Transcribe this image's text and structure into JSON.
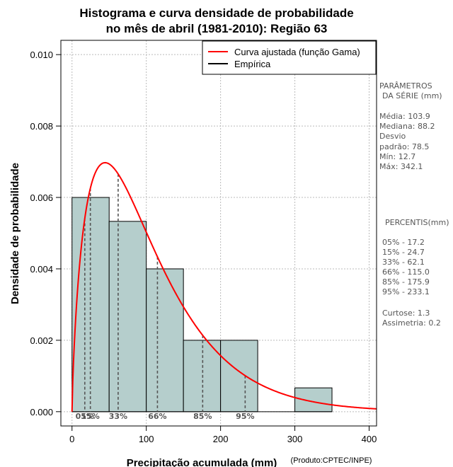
{
  "chart_data": {
    "type": "bar",
    "title_line1": "Histograma e curva densidade de probabilidade",
    "title_line2": "no mês de abril (1981-2010): Região 63",
    "xlabel": "Precipitação acumulada (mm)",
    "ylabel": "Densidade de probabilidade",
    "credit": "(Produto:CPTEC/INPE)",
    "xlim": [
      -15,
      410
    ],
    "ylim": [
      -0.0004,
      0.0104
    ],
    "x_ticks": [
      0,
      100,
      200,
      300,
      400
    ],
    "y_ticks": [
      0.0,
      0.002,
      0.004,
      0.006,
      0.008,
      0.01
    ],
    "y_tick_labels": [
      "0.000",
      "0.002",
      "0.004",
      "0.006",
      "0.008",
      "0.010"
    ],
    "grid": true,
    "bins": [
      {
        "x0": 0,
        "x1": 50,
        "density": 0.006
      },
      {
        "x0": 50,
        "x1": 100,
        "density": 0.00533
      },
      {
        "x0": 100,
        "x1": 150,
        "density": 0.004
      },
      {
        "x0": 150,
        "x1": 200,
        "density": 0.002
      },
      {
        "x0": 200,
        "x1": 250,
        "density": 0.002
      },
      {
        "x0": 250,
        "x1": 300,
        "density": 0
      },
      {
        "x0": 300,
        "x1": 350,
        "density": 0.000667
      }
    ],
    "bar_color": "#b5cecc",
    "curve": {
      "distribution": "gamma",
      "shape": 1.75,
      "scale": 59.4,
      "color": "#ff0000"
    },
    "percentile_markers": [
      {
        "label": "05%",
        "x": 17.2
      },
      {
        "label": "15%",
        "x": 24.7
      },
      {
        "label": "33%",
        "x": 62.1
      },
      {
        "label": "66%",
        "x": 115.0
      },
      {
        "label": "85%",
        "x": 175.9
      },
      {
        "label": "95%",
        "x": 233.1
      }
    ],
    "legend": {
      "position": "top-right",
      "entries": [
        {
          "label": "Curva ajustada (função Gama)",
          "color": "#ff0000"
        },
        {
          "label": "Empírica",
          "color": "#000000"
        }
      ]
    }
  },
  "side_panel": {
    "params_title_1": "PARÂMETROS",
    "params_title_2": "DA SÉRIE (mm)",
    "params": [
      "Média:  103.9",
      "Mediana:  88.2",
      "Desvio",
      "padrão:  78.5",
      "Mín:  12.7",
      "Máx:  342.1"
    ],
    "pct_title": "PERCENTIS(mm)",
    "percentiles": [
      "05% -  17.2",
      "15% -  24.7",
      "33% -  62.1",
      "66% -  115.0",
      "85% -  175.9",
      "95% -  233.1"
    ],
    "stats": [
      "Curtose:  1.3",
      "Assimetria:  0.2"
    ]
  }
}
